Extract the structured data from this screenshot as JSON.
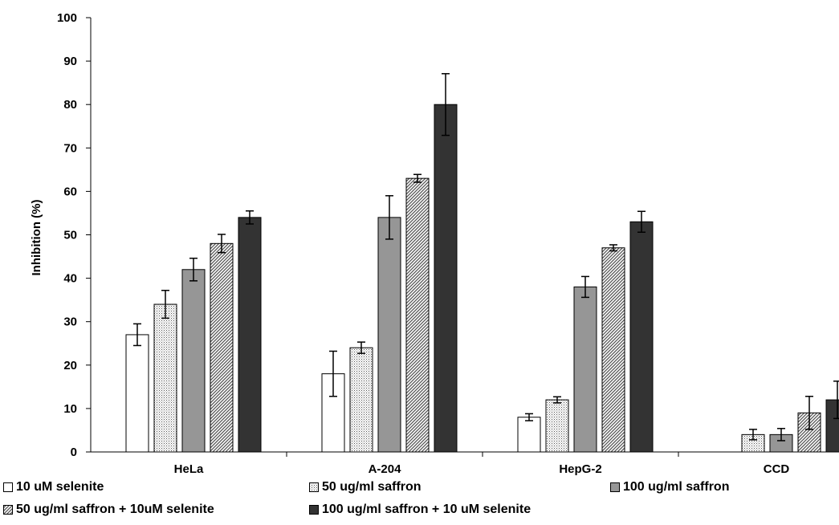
{
  "chart_data": {
    "type": "bar",
    "ylabel": "Inhibition (%)",
    "xlabel": "",
    "ylim": [
      0,
      100
    ],
    "yticks": [
      0,
      10,
      20,
      30,
      40,
      50,
      60,
      70,
      80,
      90,
      100
    ],
    "categories": [
      "HeLa",
      "A-204",
      "HepG-2",
      "CCD"
    ],
    "legend_position": "bottom",
    "series": [
      {
        "name": "10 uM selenite",
        "pattern": "white",
        "values": [
          27,
          18,
          8,
          0
        ],
        "errors": [
          2.5,
          5.2,
          0.8,
          0
        ]
      },
      {
        "name": "50 ug/ml saffron",
        "pattern": "dots",
        "values": [
          34,
          24,
          12,
          4
        ],
        "errors": [
          3.2,
          1.3,
          0.7,
          1.2
        ]
      },
      {
        "name": "100 ug/ml saffron",
        "pattern": "gray",
        "values": [
          42,
          54,
          38,
          4
        ],
        "errors": [
          2.6,
          5.0,
          2.4,
          1.4
        ]
      },
      {
        "name": "50 ug/ml saffron + 10uM selenite",
        "pattern": "hatch",
        "values": [
          48,
          63,
          47,
          9
        ],
        "errors": [
          2.1,
          0.9,
          0.7,
          3.8
        ]
      },
      {
        "name": "100 ug/ml saffron + 10 uM selenite",
        "pattern": "dark",
        "values": [
          54,
          80,
          53,
          12
        ],
        "errors": [
          1.5,
          7.1,
          2.4,
          4.3
        ]
      }
    ]
  }
}
